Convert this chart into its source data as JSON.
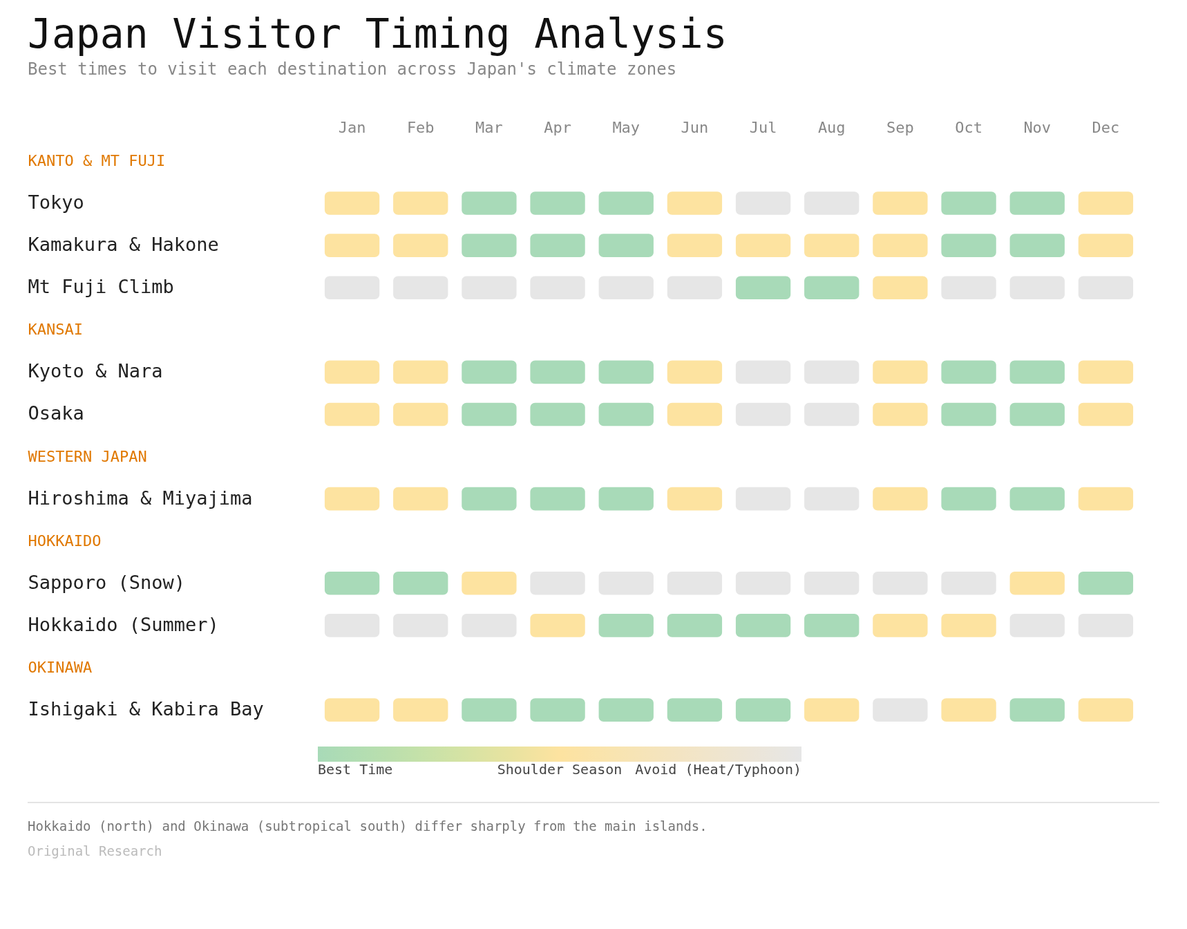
{
  "chart_data": {
    "type": "heatmap",
    "title": "Japan Visitor Timing Analysis",
    "subtitle": "Best times to visit each destination across Japan's climate zones",
    "categories": [
      "Jan",
      "Feb",
      "Mar",
      "Apr",
      "May",
      "Jun",
      "Jul",
      "Aug",
      "Sep",
      "Oct",
      "Nov",
      "Dec"
    ],
    "y_categories": [
      "KANTO & MT FUJI",
      "Tokyo",
      "Kamakura & Hakone",
      "Mt Fuji Climb",
      "KANSAI",
      "Kyoto & Nara",
      "Osaka",
      "WESTERN JAPAN",
      "Hiroshima & Miyajima",
      "HOKKAIDO",
      "Sapporo (Snow)",
      "Hokkaido (Summer)",
      "OKINAWA",
      "Ishigaki & Kabira Bay"
    ],
    "colors": [
      "#a8dab8",
      "#fde3a0",
      "#e6e6e6"
    ],
    "clim": [
      0,
      2
    ],
    "cticks": [
      {
        "value": 0,
        "label": "Best Time"
      },
      {
        "value": 1,
        "label": "Shoulder Season"
      },
      {
        "value": 2,
        "label": "Avoid (Heat/Typhoon)"
      }
    ],
    "cells": [
      [
        null,
        null,
        null,
        null,
        null,
        null,
        null,
        null,
        null,
        null,
        null,
        null
      ],
      [
        1,
        1,
        0,
        0,
        0,
        1,
        2,
        2,
        1,
        0,
        0,
        1
      ],
      [
        1,
        1,
        0,
        0,
        0,
        1,
        1,
        1,
        1,
        0,
        0,
        1
      ],
      [
        2,
        2,
        2,
        2,
        2,
        2,
        0,
        0,
        1,
        2,
        2,
        2
      ],
      [
        null,
        null,
        null,
        null,
        null,
        null,
        null,
        null,
        null,
        null,
        null,
        null
      ],
      [
        1,
        1,
        0,
        0,
        0,
        1,
        2,
        2,
        1,
        0,
        0,
        1
      ],
      [
        1,
        1,
        0,
        0,
        0,
        1,
        2,
        2,
        1,
        0,
        0,
        1
      ],
      [
        null,
        null,
        null,
        null,
        null,
        null,
        null,
        null,
        null,
        null,
        null,
        null
      ],
      [
        1,
        1,
        0,
        0,
        0,
        1,
        2,
        2,
        1,
        0,
        0,
        1
      ],
      [
        null,
        null,
        null,
        null,
        null,
        null,
        null,
        null,
        null,
        null,
        null,
        null
      ],
      [
        0,
        0,
        1,
        2,
        2,
        2,
        2,
        2,
        2,
        2,
        1,
        0
      ],
      [
        2,
        2,
        2,
        1,
        0,
        0,
        0,
        0,
        1,
        1,
        2,
        2
      ],
      [
        null,
        null,
        null,
        null,
        null,
        null,
        null,
        null,
        null,
        null,
        null,
        null
      ],
      [
        1,
        1,
        0,
        0,
        0,
        0,
        0,
        1,
        2,
        1,
        0,
        1
      ]
    ],
    "annotations": [
      "Hokkaido (north) and Okinawa (subtropical south) differ sharply from the main islands.",
      "Original Research"
    ]
  }
}
